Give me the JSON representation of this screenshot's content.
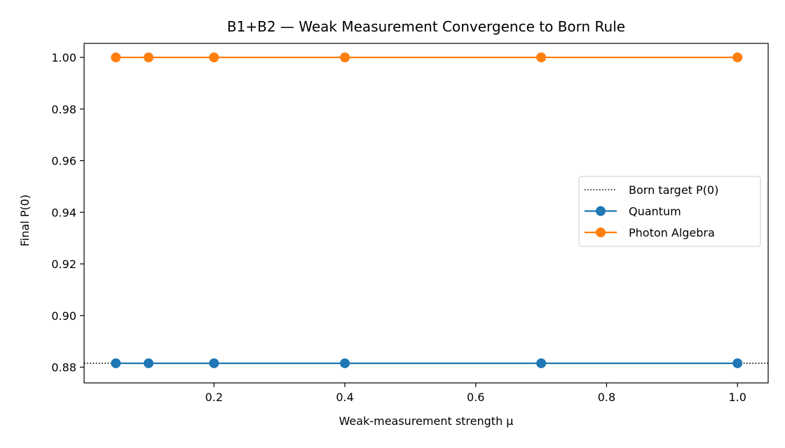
{
  "chart_data": {
    "type": "line",
    "title": "B1+B2 — Weak Measurement Convergence to Born Rule",
    "xlabel": "Weak-measurement strength μ",
    "ylabel": "Final P(0)",
    "xlim": [
      0.0,
      1.0
    ],
    "ylim": [
      0.876,
      1.005
    ],
    "xticks": [
      0.2,
      0.4,
      0.6,
      0.8,
      1.0
    ],
    "xtick_labels": [
      "0.2",
      "0.4",
      "0.6",
      "0.8",
      "1.0"
    ],
    "yticks": [
      0.88,
      0.9,
      0.92,
      0.94,
      0.96,
      0.98,
      1.0
    ],
    "ytick_labels": [
      "0.88",
      "0.90",
      "0.92",
      "0.94",
      "0.96",
      "0.98",
      "1.00"
    ],
    "x": [
      0.05,
      0.1,
      0.2,
      0.4,
      0.7,
      1.0
    ],
    "reference_line": {
      "name": "Born target P(0)",
      "y": 0.8815,
      "color": "#000000",
      "style": "dotted"
    },
    "series": [
      {
        "name": "Quantum",
        "color": "#1f77b4",
        "values": [
          0.8815,
          0.8815,
          0.8815,
          0.8815,
          0.8815,
          0.8815
        ]
      },
      {
        "name": "Photon Algebra",
        "color": "#ff7f0e",
        "values": [
          1.0,
          1.0,
          1.0,
          1.0,
          1.0,
          1.0
        ]
      }
    ],
    "grid": false,
    "legend_position": "center-right"
  }
}
